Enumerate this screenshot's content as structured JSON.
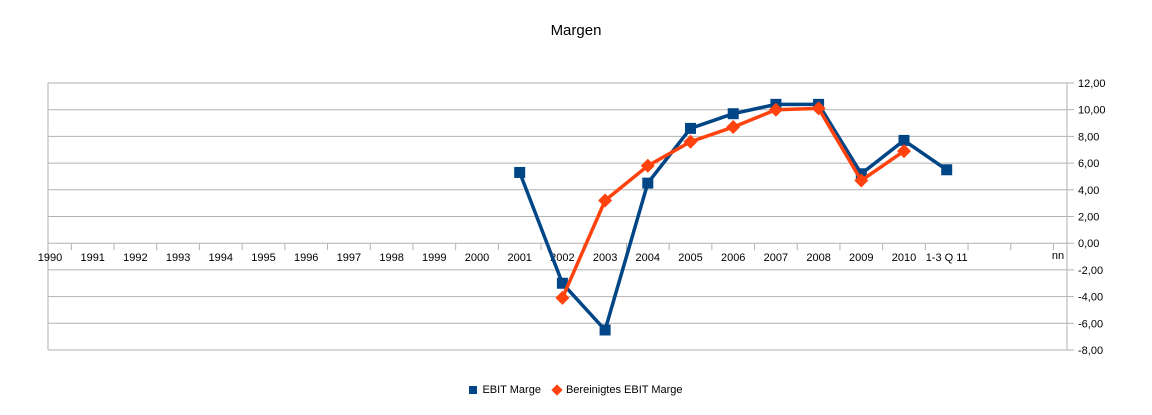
{
  "chart_data": {
    "type": "line",
    "title": "Margen",
    "categories": [
      "1990",
      "1991",
      "1992",
      "1993",
      "1994",
      "1995",
      "1996",
      "1997",
      "1998",
      "1999",
      "2000",
      "2001",
      "2002",
      "2003",
      "2004",
      "2005",
      "2006",
      "2007",
      "2008",
      "2009",
      "2010",
      "1-3 Q 11"
    ],
    "series": [
      {
        "name": "EBIT Marge",
        "color": "#004586",
        "marker": "square",
        "values": [
          null,
          null,
          null,
          null,
          null,
          null,
          null,
          null,
          null,
          null,
          null,
          5.3,
          -3.0,
          -6.5,
          4.5,
          8.6,
          9.7,
          10.4,
          10.4,
          5.2,
          7.7,
          5.5
        ]
      },
      {
        "name": "Bereinigtes EBIT Marge",
        "color": "#FF420E",
        "marker": "diamond",
        "values": [
          null,
          null,
          null,
          null,
          null,
          null,
          null,
          null,
          null,
          null,
          null,
          null,
          -4.1,
          3.2,
          5.8,
          7.6,
          8.7,
          10.0,
          10.1,
          4.7,
          6.9,
          null
        ]
      }
    ],
    "ylim": [
      -8,
      12
    ],
    "y_tick_step": 2,
    "y_tick_labels": [
      "12,00",
      "10,00",
      "8,00",
      "6,00",
      "4,00",
      "2,00",
      "0,00",
      "-2,00",
      "-4,00",
      "-6,00",
      "-8,00"
    ],
    "axis_note": "nn",
    "grid": "horizontal-only",
    "legend_position": "bottom-center",
    "gridline_color": "#b2b2b2",
    "text_color": "#000000",
    "background_color": "#ffffff"
  }
}
